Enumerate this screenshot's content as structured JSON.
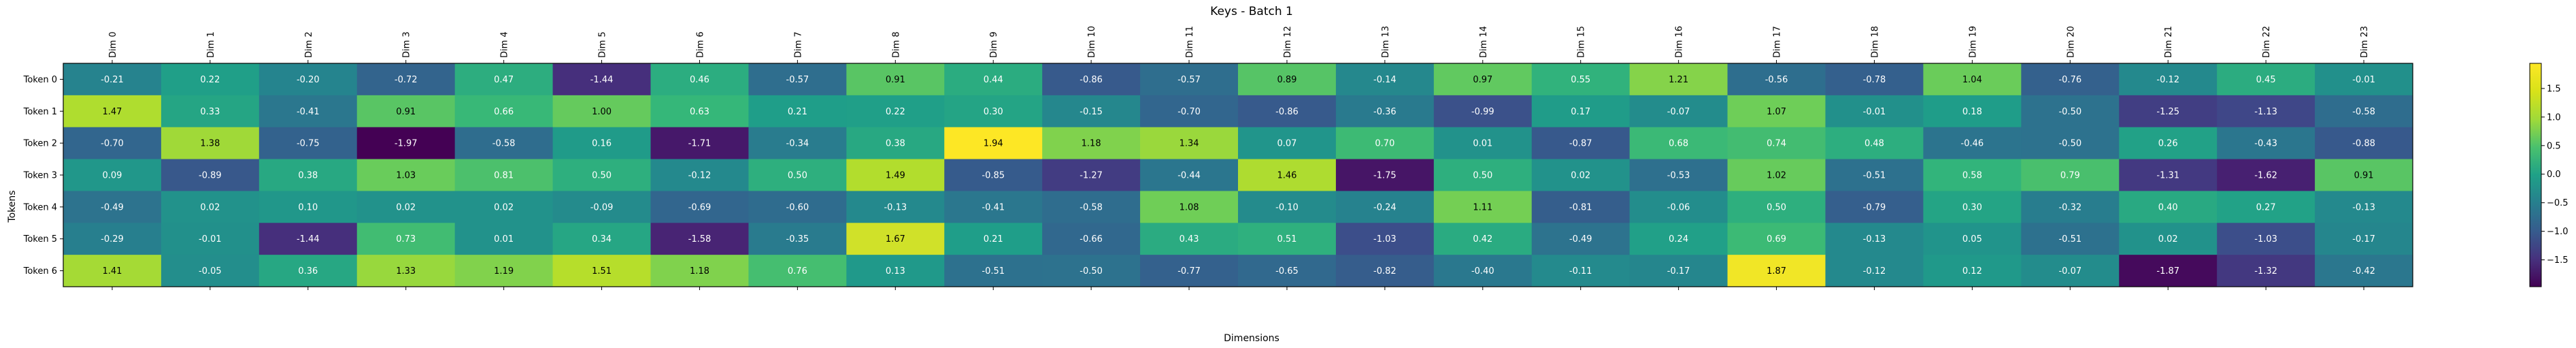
{
  "chart_data": {
    "type": "heatmap",
    "title": "Keys - Batch 1",
    "xlabel": "Dimensions",
    "ylabel": "Tokens",
    "x_categories": [
      "Dim 0",
      "Dim 1",
      "Dim 2",
      "Dim 3",
      "Dim 4",
      "Dim 5",
      "Dim 6",
      "Dim 7",
      "Dim 8",
      "Dim 9",
      "Dim 10",
      "Dim 11",
      "Dim 12",
      "Dim 13",
      "Dim 14",
      "Dim 15",
      "Dim 16",
      "Dim 17",
      "Dim 18",
      "Dim 19",
      "Dim 20",
      "Dim 21",
      "Dim 22",
      "Dim 23"
    ],
    "y_categories": [
      "Token 0",
      "Token 1",
      "Token 2",
      "Token 3",
      "Token 4",
      "Token 5",
      "Token 6"
    ],
    "values": [
      [
        -0.21,
        0.22,
        -0.2,
        -0.72,
        0.47,
        -1.44,
        0.46,
        -0.57,
        0.91,
        0.44,
        -0.86,
        -0.57,
        0.89,
        -0.14,
        0.97,
        0.55,
        1.21,
        -0.56,
        -0.78,
        1.04,
        -0.76,
        -0.12,
        0.45,
        -0.01
      ],
      [
        1.47,
        0.33,
        -0.41,
        0.91,
        0.66,
        1.0,
        0.63,
        0.21,
        0.22,
        0.3,
        -0.15,
        -0.7,
        -0.86,
        -0.36,
        -0.99,
        0.17,
        -0.07,
        1.07,
        -0.01,
        0.18,
        -0.5,
        -1.25,
        -1.13,
        -0.58
      ],
      [
        -0.7,
        1.38,
        -0.75,
        -1.97,
        -0.58,
        0.16,
        -1.71,
        -0.34,
        0.38,
        1.94,
        1.18,
        1.34,
        0.07,
        0.7,
        0.01,
        -0.87,
        0.68,
        0.74,
        0.48,
        -0.46,
        -0.5,
        0.26,
        -0.43,
        -0.88
      ],
      [
        0.09,
        -0.89,
        0.38,
        1.03,
        0.81,
        0.5,
        -0.12,
        0.5,
        1.49,
        -0.85,
        -1.27,
        -0.44,
        1.46,
        -1.75,
        0.5,
        0.02,
        -0.53,
        1.02,
        -0.51,
        0.58,
        0.79,
        -1.31,
        -1.62,
        0.91
      ],
      [
        -0.49,
        0.02,
        0.1,
        0.02,
        0.02,
        -0.09,
        -0.69,
        -0.6,
        -0.13,
        -0.41,
        -0.58,
        1.08,
        -0.1,
        -0.24,
        1.11,
        -0.81,
        -0.06,
        0.5,
        -0.79,
        0.3,
        -0.32,
        0.4,
        0.27,
        -0.13
      ],
      [
        -0.29,
        -0.01,
        -1.44,
        0.73,
        0.01,
        0.34,
        -1.58,
        -0.35,
        1.67,
        0.21,
        -0.66,
        0.43,
        0.51,
        -1.03,
        0.42,
        -0.49,
        0.24,
        0.69,
        -0.13,
        0.05,
        -0.51,
        0.02,
        -1.03,
        -0.17
      ],
      [
        1.41,
        -0.05,
        0.36,
        1.33,
        1.19,
        1.51,
        1.18,
        0.76,
        0.13,
        -0.51,
        -0.5,
        -0.77,
        -0.65,
        -0.82,
        -0.4,
        -0.11,
        -0.17,
        1.87,
        -0.12,
        0.12,
        -0.07,
        -1.87,
        -1.32,
        -0.42
      ]
    ],
    "colormap": "viridis",
    "vmin": -1.97,
    "vmax": 1.94,
    "colorbar_ticks": [
      "1.5",
      "1.0",
      "0.5",
      "0.0",
      "−0.5",
      "−1.0",
      "−1.5"
    ],
    "colorbar_tick_values": [
      1.5,
      1.0,
      0.5,
      0.0,
      -0.5,
      -1.0,
      -1.5
    ]
  }
}
